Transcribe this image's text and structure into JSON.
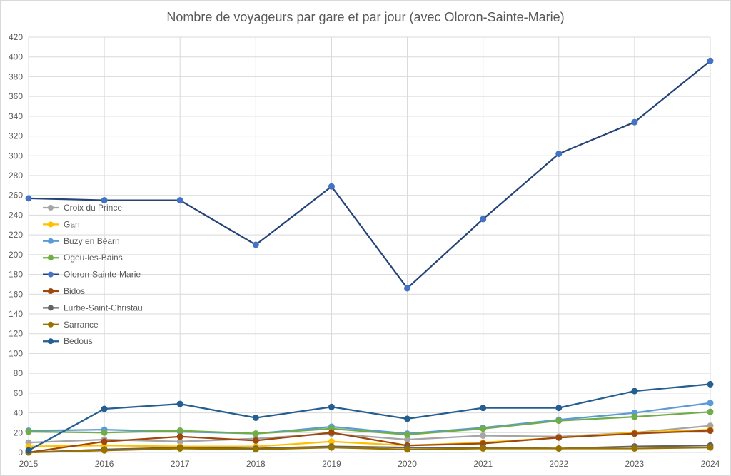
{
  "chart_data": {
    "type": "line",
    "title": "Nombre de voyageurs par gare et par jour (avec Oloron-Sainte-Marie)",
    "xlabel": "",
    "ylabel": "",
    "x": [
      "2015",
      "2016",
      "2017",
      "2018",
      "2019",
      "2020",
      "2021",
      "2022",
      "2023",
      "2024"
    ],
    "ylim": [
      0,
      420
    ],
    "y_ticks": [
      "0",
      "20",
      "40",
      "60",
      "80",
      "100",
      "120",
      "140",
      "160",
      "180",
      "200",
      "220",
      "240",
      "260",
      "280",
      "300",
      "320",
      "340",
      "360",
      "380",
      "400",
      "420"
    ],
    "grid": true,
    "legend_position": "left",
    "series": [
      {
        "name": "Croix du Prince",
        "color": "#a5a5a5",
        "values": [
          10,
          13,
          11,
          14,
          19,
          13,
          17,
          16,
          20,
          27
        ]
      },
      {
        "name": "Gan",
        "color": "#ffc000",
        "values": [
          6,
          7,
          6,
          6,
          11,
          7,
          10,
          15,
          20,
          23
        ]
      },
      {
        "name": "Buzy en Béarn",
        "color": "#5b9bd5",
        "values": [
          22,
          23,
          21,
          19,
          26,
          19,
          25,
          33,
          40,
          50
        ]
      },
      {
        "name": "Ogeu-les-Bains",
        "color": "#70ad47",
        "values": [
          21,
          20,
          22,
          19,
          24,
          18,
          24,
          32,
          36,
          41
        ]
      },
      {
        "name": "Oloron-Sainte-Marie",
        "color": "#264478",
        "marker": "#4472c4",
        "values": [
          257,
          255,
          255,
          210,
          269,
          166,
          236,
          302,
          334,
          396
        ]
      },
      {
        "name": "Bidos",
        "color": "#9e480e",
        "values": [
          0,
          11,
          16,
          12,
          20,
          7,
          9,
          15,
          19,
          22
        ]
      },
      {
        "name": "Lurbe-Saint-Christau",
        "color": "#636363",
        "values": [
          0,
          3,
          5,
          4,
          6,
          5,
          5,
          4,
          6,
          7
        ]
      },
      {
        "name": "Sarrance",
        "color": "#997300",
        "values": [
          0,
          2,
          4,
          3,
          5,
          3,
          4,
          4,
          4,
          5
        ]
      },
      {
        "name": "Bedous",
        "color": "#255e91",
        "values": [
          2,
          44,
          49,
          35,
          46,
          34,
          45,
          45,
          62,
          69
        ]
      }
    ]
  }
}
